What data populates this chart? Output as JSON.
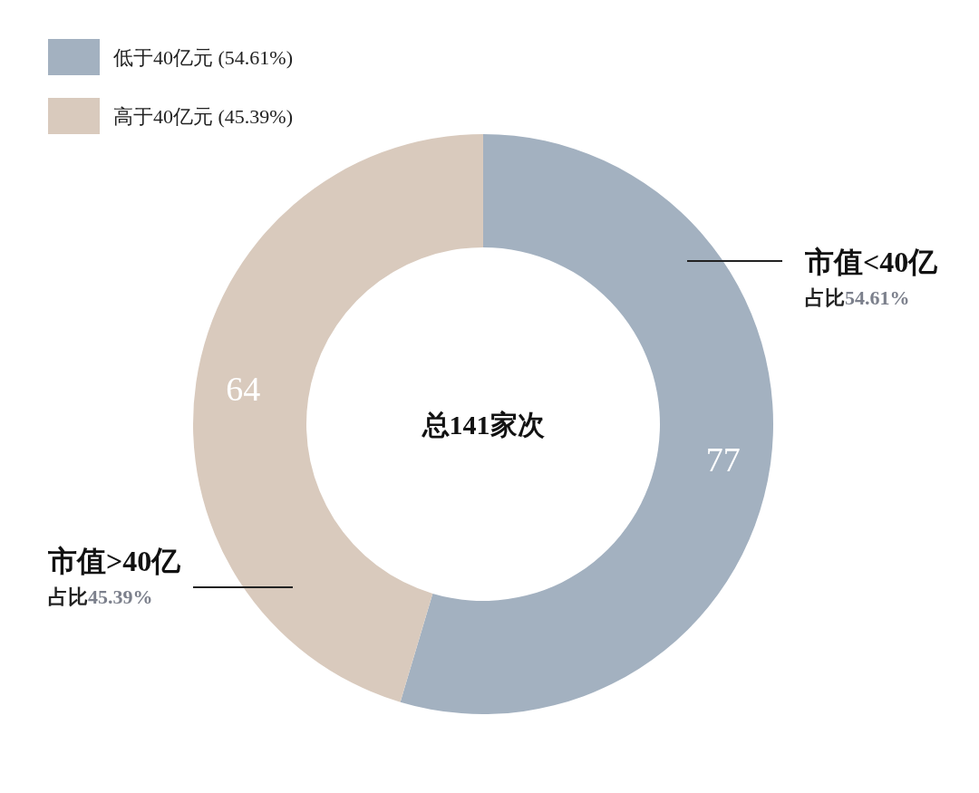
{
  "chart_data": {
    "type": "donut",
    "categories": [
      "低于40亿元 (54.61%)",
      "高于40亿元 (45.39%)"
    ],
    "values": [
      77,
      64
    ],
    "colors": [
      "#a3b1c0",
      "#d9cabd"
    ],
    "data_labels": true,
    "legend": "top left",
    "annotations": [
      "市值<40亿",
      "占比54.61%",
      "市值>40亿",
      "占比45.39%",
      "总141家次"
    ]
  }
}
